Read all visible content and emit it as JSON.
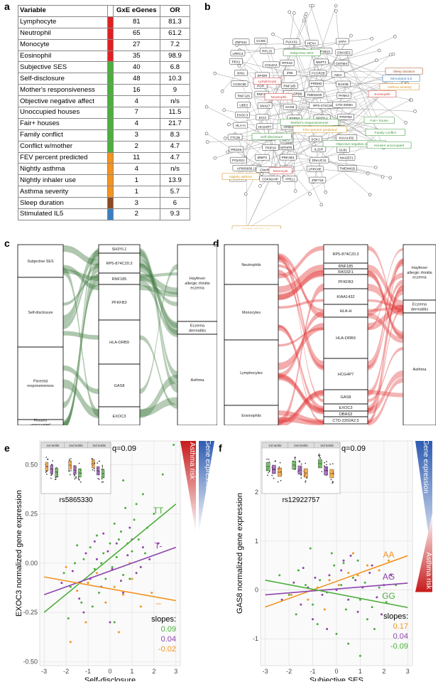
{
  "panel_labels": {
    "a": "a",
    "b": "b",
    "c": "c",
    "d": "d",
    "e": "e",
    "f": "f"
  },
  "table_a": {
    "headers": [
      "Variable",
      "GxE eGenes",
      "OR"
    ],
    "rows": [
      {
        "variable": "Lymphocyte",
        "egenes": "81",
        "or": "81.3",
        "color": "#e02020"
      },
      {
        "variable": "Neutrophil",
        "egenes": "65",
        "or": "61.2",
        "color": "#e02020"
      },
      {
        "variable": "Monocyte",
        "egenes": "27",
        "or": "7.2",
        "color": "#e02020"
      },
      {
        "variable": "Eosinophil",
        "egenes": "35",
        "or": "98.9",
        "color": "#e02020"
      },
      {
        "variable": "Subjective SES",
        "egenes": "40",
        "or": "6.8",
        "color": "#4caf3c"
      },
      {
        "variable": "Self-disclosure",
        "egenes": "48",
        "or": "10.3",
        "color": "#4caf3c"
      },
      {
        "variable": "Mother's responsiveness",
        "egenes": "16",
        "or": "9",
        "color": "#4caf3c"
      },
      {
        "variable": "Objective negative affect",
        "egenes": "4",
        "or": "n/s",
        "color": "#4caf3c"
      },
      {
        "variable": "Unoccupied houses",
        "egenes": "7",
        "or": "11.5",
        "color": "#4caf3c"
      },
      {
        "variable": "Fair+ houses",
        "egenes": "4",
        "or": "21.7",
        "color": "#4caf3c"
      },
      {
        "variable": "Family conflict",
        "egenes": "3",
        "or": "8.3",
        "color": "#4caf3c"
      },
      {
        "variable": "Conflict w/mother",
        "egenes": "2",
        "or": "4.7",
        "color": "#4caf3c"
      },
      {
        "variable": "FEV percent predicted",
        "egenes": "11",
        "or": "4.7",
        "color": "#f39420"
      },
      {
        "variable": "Nightly asthma",
        "egenes": "4",
        "or": "n/s",
        "color": "#f39420"
      },
      {
        "variable": "Nightly inhaler use",
        "egenes": "1",
        "or": "13.9",
        "color": "#f39420"
      },
      {
        "variable": "Asthma severity",
        "egenes": "1",
        "or": "5.7",
        "color": "#f39420"
      },
      {
        "variable": "Sleep duration",
        "egenes": "3",
        "or": "6",
        "color": "#8b4a24"
      },
      {
        "variable": "Stimulated IL5",
        "egenes": "2",
        "or": "9.3",
        "color": "#3a7fc1"
      }
    ]
  },
  "network_b": {
    "hubs": [
      {
        "label": "Lymphocyte",
        "color": "#d23a3a"
      },
      {
        "label": "Neutrophil",
        "color": "#d23a3a"
      },
      {
        "label": "Eosinophil",
        "color": "#d23a3a"
      },
      {
        "label": "Monocyte",
        "color": "#d23a3a"
      },
      {
        "label": "Subjective SES",
        "color": "#3a9a3a"
      },
      {
        "label": "Self-disclosure",
        "color": "#3a9a3a"
      },
      {
        "label": "Mother's responsiveness",
        "color": "#3a9a3a"
      },
      {
        "label": "Objective negative affect",
        "color": "#3a9a3a"
      },
      {
        "label": "Family conflict",
        "color": "#3a9a3a"
      },
      {
        "label": "Fair+ house",
        "color": "#3a9a3a"
      },
      {
        "label": "Houses unoccupied",
        "color": "#3a9a3a"
      },
      {
        "label": "FEV percent predicted",
        "color": "#d4941e"
      },
      {
        "label": "Nightly asthma",
        "color": "#d4941e"
      },
      {
        "label": "Nightly inhaler use",
        "color": "#d4941e"
      },
      {
        "label": "Asthma severity",
        "color": "#d4941e"
      },
      {
        "label": "Sleep duration",
        "color": "#a0522d"
      },
      {
        "label": "Stimulated IL5",
        "color": "#3a7fc1"
      }
    ],
    "genes": [
      "ZNF641",
      "CCM2",
      "PLK1S1",
      "HEXA",
      "VAPA",
      "LRRC4",
      "RPL15",
      "NCORC1L1",
      "BANP1B13",
      "DNASE2",
      "PEX1",
      "COL6A2",
      "RPS4X",
      "NNPT1",
      "CMTM4",
      "BIN1",
      "SPIDR",
      "ZN6",
      "FCGR2B",
      "AIDA",
      "CCDC65",
      "PGR",
      "RNF185",
      "PRDM2",
      "BAZ2B",
      "RNF126",
      "RNF38",
      "HLA-DRB9",
      "TMEM100",
      "PANK3",
      "UBE2",
      "SNX27",
      "GAS8",
      "RPS-474C20.3",
      "CTD-2008A",
      "EXOC3",
      "ECI2",
      "PTPN2",
      "SH3YL1",
      "PFKFB3",
      "HLA-H",
      "HCG4P7",
      "ARID4A",
      "IQCB1",
      "TPP1",
      "TTC35",
      "RASSF1",
      "UBA7",
      "SGK1",
      "KIAA1432",
      "PRDX5",
      "TRIP10",
      "MTHFR",
      "IL21R",
      "GLB1",
      "POLR2J",
      "BNIP2",
      "PRKAB1",
      "DNAJC11",
      "MAGEF1",
      "AP000936.11",
      "C9orf40",
      "NLRC4",
      "LRRC8E",
      "TMEM41B",
      "PDCD10",
      "CDKN2AIP",
      "YPEL1",
      "ZNF718"
    ]
  },
  "sankey_c": {
    "left": [
      "Subjective SES",
      "Self-disclosure",
      "Parental responsiveness",
      "Houses unoccupied"
    ],
    "middle": [
      "SH3YL1",
      "RP5-874C20.3",
      "RNF185",
      "PFKFB3",
      "HLA-DRB9",
      "GAS8",
      "EXOC3"
    ],
    "right": [
      "Hayfever allergic rhinitis eczema",
      "Eczema dermatitis",
      "Asthma"
    ],
    "color": "#3f7a3f"
  },
  "sankey_d": {
    "left": [
      "Neutrophils",
      "Monocytes",
      "Lymphocytes",
      "Eosinophils"
    ],
    "middle": [
      "RP5-874C20.3",
      "RNF185",
      "RASSF1",
      "PFKFB3",
      "KIAA1432",
      "HLA-H",
      "HLA-DRB9",
      "HCG4P7",
      "GAS8",
      "EXOC3",
      "DBAS3",
      "CTD-2202A2.5"
    ],
    "right": [
      "Hayfever allergic rhinitis eczema",
      "Eczema dermatitis",
      "Asthma"
    ],
    "color": "#e33a3a"
  },
  "chart_data": [
    {
      "type": "scatter",
      "panel": "e",
      "xlabel": "Self-disclosure",
      "ylabel": "EXOC3 normalized gene expression",
      "xlim": [
        -3.2,
        3.2
      ],
      "ylim": [
        -0.52,
        0.62
      ],
      "xticks": [
        -3,
        -2,
        -1,
        0,
        1,
        2,
        3
      ],
      "yticks": [
        -0.5,
        -0.25,
        0.0,
        0.25,
        0.5
      ],
      "ytick_labels": [
        "-0.50",
        "-0.25",
        "0.00",
        "0.25",
        "0.50"
      ],
      "q_label": "q=0.09",
      "snp": "rs5865330",
      "slopes_title": "slopes:",
      "series": [
        {
          "name": "TT",
          "color": "#4caf3c",
          "slope": 0.09,
          "slope_label": "0.09",
          "line": {
            "x": [
              -3,
              3
            ],
            "y": [
              -0.25,
              0.3
            ]
          },
          "points": {
            "x": [
              -2.1,
              -1.8,
              -1.6,
              -1.3,
              -1.2,
              -1.0,
              -0.9,
              -0.7,
              -0.6,
              -0.5,
              -0.3,
              -0.2,
              0.0,
              0.1,
              0.2,
              0.3,
              0.5,
              0.6,
              0.7,
              0.8,
              1.0,
              1.1,
              1.3,
              1.5,
              1.7,
              2.0,
              2.4,
              -1.9,
              -0.4,
              0.4,
              0.9,
              1.2,
              -0.8,
              0.6,
              1.6,
              -1.5,
              0.2,
              2.9
            ],
            "y": [
              -0.05,
              -0.12,
              0.0,
              -0.2,
              0.02,
              -0.1,
              0.08,
              -0.03,
              0.14,
              -0.15,
              0.05,
              -0.08,
              0.1,
              -0.02,
              0.2,
              0.03,
              0.16,
              -0.06,
              0.28,
              0.1,
              0.06,
              0.22,
              0.12,
              0.35,
              0.18,
              0.25,
              0.45,
              -0.28,
              0.0,
              0.12,
              -0.08,
              0.3,
              -0.22,
              0.42,
              0.05,
              0.09,
              -0.3,
              0.6
            ]
          }
        },
        {
          "name": "T-",
          "color": "#8e44ad",
          "slope": 0.04,
          "slope_label": "0.04",
          "line": {
            "x": [
              -3,
              3
            ],
            "y": [
              -0.16,
              0.08
            ]
          },
          "points": {
            "x": [
              -2.2,
              -1.7,
              -1.4,
              -1.1,
              -0.9,
              -0.6,
              -0.4,
              -0.1,
              0.1,
              0.3,
              0.5,
              0.8,
              1.0,
              1.2,
              1.5,
              1.8,
              2.2,
              -1.2,
              -0.3,
              0.6,
              1.4,
              0.0,
              -0.7,
              0.9
            ],
            "y": [
              -0.1,
              -0.04,
              -0.18,
              0.05,
              -0.08,
              0.02,
              -0.12,
              0.06,
              -0.03,
              0.1,
              -0.09,
              0.04,
              0.12,
              -0.05,
              0.08,
              0.02,
              0.1,
              -0.25,
              0.15,
              -0.15,
              -0.02,
              -0.3,
              0.11,
              0.18
            ]
          }
        },
        {
          "name": "--",
          "color": "#f39420",
          "slope": -0.02,
          "slope_label": "-0.02",
          "line": {
            "x": [
              -3,
              3
            ],
            "y": [
              -0.07,
              -0.19
            ]
          },
          "points": {
            "x": [
              -2.0,
              -1.5,
              -1.0,
              -0.6,
              -0.2,
              0.2,
              0.6,
              1.0,
              1.4,
              1.9,
              -1.1,
              0.4,
              0.9,
              -1.8
            ],
            "y": [
              -0.02,
              -0.14,
              -0.1,
              -0.05,
              -0.2,
              -0.12,
              -0.16,
              -0.08,
              -0.22,
              -0.15,
              -0.3,
              -0.35,
              0.0,
              -0.4
            ]
          }
        }
      ],
      "inset": {
        "type": "boxplot",
        "groups": [
          "1st tertile",
          "2nd tertile",
          "3rd tertile"
        ]
      },
      "side_bars": {
        "red_label": "Asthma risk",
        "blue_label": "Gene expression"
      }
    },
    {
      "type": "scatter",
      "panel": "f",
      "xlabel": "Subjective SES",
      "ylabel": "GAS8 normalized gene expression",
      "xlim": [
        -3.2,
        3.2
      ],
      "ylim": [
        -1.55,
        3.05
      ],
      "xticks": [
        -3,
        -2,
        -1,
        0,
        1,
        2,
        3
      ],
      "yticks": [
        -1,
        0,
        1,
        2
      ],
      "ytick_labels": [
        "-1",
        "0",
        "1",
        "2"
      ],
      "q_label": "q=0.09",
      "snp": "rs12922757",
      "slopes_title": "slopes:",
      "series": [
        {
          "name": "AA",
          "color": "#f39420",
          "slope": 0.17,
          "slope_label": "0.17",
          "line": {
            "x": [
              -3,
              3
            ],
            "y": [
              -0.35,
              0.7
            ]
          },
          "points": {
            "x": [
              -1.9,
              -1.2,
              -0.8,
              -0.3,
              0.1,
              0.5,
              0.9,
              1.3,
              1.8,
              2.2,
              -0.5,
              0.7
            ],
            "y": [
              -0.1,
              -0.2,
              0.05,
              0.2,
              0.1,
              0.35,
              0.3,
              0.5,
              0.4,
              0.6,
              -0.4,
              0.75
            ]
          }
        },
        {
          "name": "AG",
          "color": "#8e44ad",
          "slope": 0.04,
          "slope_label": "0.04",
          "line": {
            "x": [
              -3,
              3
            ],
            "y": [
              -0.1,
              0.14
            ]
          },
          "points": {
            "x": [
              -2.3,
              -1.8,
              -1.5,
              -1.2,
              -0.9,
              -0.6,
              -0.3,
              0.0,
              0.2,
              0.5,
              0.8,
              1.1,
              1.4,
              1.7,
              2.0,
              2.3,
              -1.0,
              0.3,
              0.9,
              1.5,
              -0.4,
              0.6,
              -1.4,
              1.9
            ],
            "y": [
              -0.2,
              0.15,
              -0.3,
              0.05,
              0.25,
              -0.1,
              0.3,
              0.0,
              0.4,
              -0.2,
              0.2,
              0.05,
              0.35,
              -0.15,
              0.1,
              0.3,
              -0.6,
              0.6,
              -0.45,
              0.5,
              -0.8,
              0.7,
              0.45,
              -0.5
            ]
          }
        },
        {
          "name": "GG",
          "color": "#4caf3c",
          "slope": -0.09,
          "slope_label": "-0.09",
          "line": {
            "x": [
              -3,
              3
            ],
            "y": [
              0.2,
              -0.36
            ]
          },
          "points": {
            "x": [
              -2.4,
              -2.0,
              -1.6,
              -1.3,
              -1.0,
              -0.7,
              -0.4,
              -0.1,
              0.2,
              0.4,
              0.7,
              1.0,
              1.2,
              1.5,
              1.8,
              2.1,
              -0.8,
              0.0,
              0.9,
              1.3,
              -1.7,
              0.5,
              2.5,
              -0.2,
              1.0,
              0.3,
              -1.1,
              1.6
            ],
            "y": [
              0.3,
              -0.1,
              0.4,
              0.1,
              -0.3,
              0.2,
              -0.05,
              0.5,
              0.1,
              -0.4,
              0.25,
              -0.2,
              0.15,
              -0.35,
              0.05,
              -0.25,
              -0.7,
              -0.9,
              0.6,
              -0.6,
              -0.5,
              -1.1,
              0.1,
              0.75,
              -1.35,
              0.55,
              0.85,
              -0.8
            ]
          }
        }
      ],
      "inset": {
        "type": "boxplot",
        "groups": [
          "1st tertile",
          "2nd tertile",
          "3rd tertile"
        ]
      },
      "side_bars": {
        "red_label": "Asthma risk",
        "blue_label": "Gene expression"
      }
    }
  ]
}
